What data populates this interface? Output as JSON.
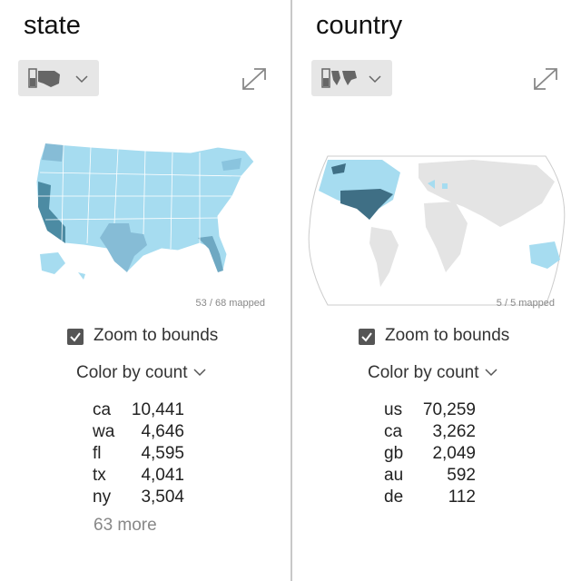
{
  "panels": [
    {
      "title": "state",
      "mapped": "53 / 68 mapped",
      "zoom": "Zoom to bounds",
      "color_by": "Color by",
      "color_field": "count",
      "rows": [
        [
          "ca",
          "10,441"
        ],
        [
          "wa",
          "4,646"
        ],
        [
          "fl",
          "4,595"
        ],
        [
          "tx",
          "4,041"
        ],
        [
          "ny",
          "3,504"
        ]
      ],
      "more": "63 more"
    },
    {
      "title": "country",
      "mapped": "5 / 5 mapped",
      "zoom": "Zoom to bounds",
      "color_by": "Color by",
      "color_field": "count",
      "rows": [
        [
          "us",
          "70,259"
        ],
        [
          "ca",
          "3,262"
        ],
        [
          "gb",
          "2,049"
        ],
        [
          "au",
          "592"
        ],
        [
          "de",
          "112"
        ]
      ]
    }
  ]
}
